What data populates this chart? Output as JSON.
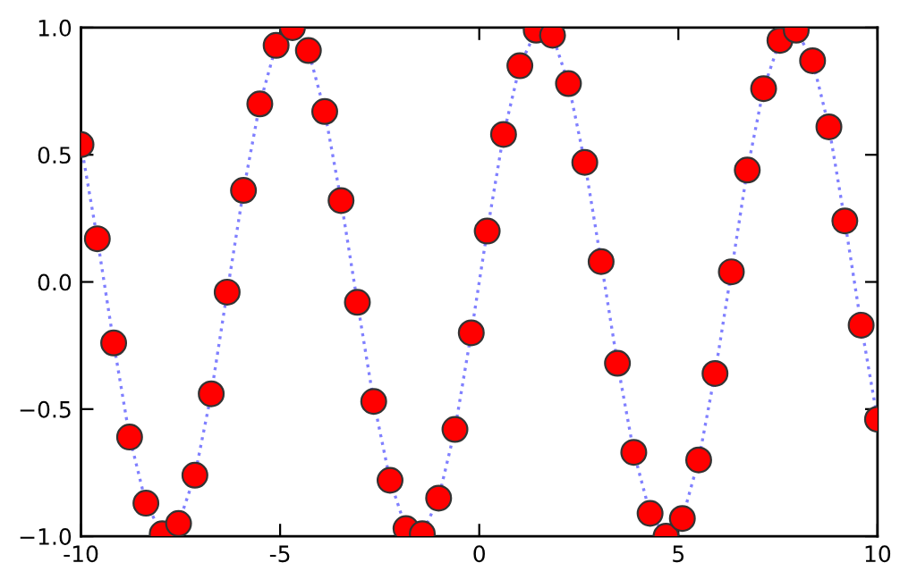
{
  "chart_data": {
    "type": "scatter",
    "x": [
      -10.0,
      -9.59,
      -9.18,
      -8.78,
      -8.37,
      -7.96,
      -7.55,
      -7.14,
      -6.73,
      -6.33,
      -5.92,
      -5.51,
      -5.1,
      -4.69,
      -4.29,
      -3.88,
      -3.47,
      -3.06,
      -2.65,
      -2.24,
      -1.84,
      -1.43,
      -1.02,
      -0.61,
      -0.2,
      0.2,
      0.61,
      1.02,
      1.43,
      1.84,
      2.24,
      2.65,
      3.06,
      3.47,
      3.88,
      4.29,
      4.69,
      5.1,
      5.51,
      5.92,
      6.33,
      6.73,
      7.14,
      7.55,
      7.96,
      8.37,
      8.78,
      9.18,
      9.59,
      10.0
    ],
    "series": [
      {
        "type": "line",
        "color": "#8080ff",
        "line_style": "dotted",
        "marker": "none",
        "values": [
          0.54,
          0.17,
          -0.24,
          -0.61,
          -0.87,
          -0.99,
          -0.95,
          -0.76,
          -0.44,
          -0.04,
          0.36,
          0.7,
          0.93,
          1.0,
          0.91,
          0.67,
          0.32,
          -0.08,
          -0.47,
          -0.78,
          -0.97,
          -0.99,
          -0.85,
          -0.58,
          -0.2,
          0.2,
          0.58,
          0.85,
          0.99,
          0.97,
          0.78,
          0.47,
          0.08,
          -0.32,
          -0.67,
          -0.91,
          -1.0,
          -0.93,
          -0.7,
          -0.36,
          0.04,
          0.44,
          0.76,
          0.95,
          0.99,
          0.87,
          0.61,
          0.24,
          -0.17,
          -0.54
        ]
      },
      {
        "color": "#ff0000",
        "marker": "circle",
        "values": [
          0.54,
          0.17,
          -0.24,
          -0.61,
          -0.87,
          -0.99,
          -0.95,
          -0.76,
          -0.44,
          -0.04,
          0.36,
          0.7,
          0.93,
          1.0,
          0.91,
          0.67,
          0.32,
          -0.08,
          -0.47,
          -0.78,
          -0.97,
          -0.99,
          -0.85,
          -0.58,
          -0.2,
          0.2,
          0.58,
          0.85,
          0.99,
          0.97,
          0.78,
          0.47,
          0.08,
          -0.32,
          -0.67,
          -0.91,
          -1.0,
          -0.93,
          -0.7,
          -0.36,
          0.04,
          0.44,
          0.76,
          0.95,
          0.99,
          0.87,
          0.61,
          0.24,
          -0.17,
          -0.54
        ]
      }
    ],
    "xlim": [
      -10,
      10
    ],
    "xticks": [
      -10,
      -5,
      0,
      5,
      10
    ],
    "ylim": [
      -1.0,
      1.0
    ],
    "yticks": [
      {
        "value": -1.0,
        "label": "−1.0"
      },
      {
        "value": -0.5,
        "label": "−0.5"
      },
      {
        "value": 0.0,
        "label": "0.0"
      },
      {
        "value": 0.5,
        "label": "0.5"
      },
      {
        "value": 1.0,
        "label": "1.0"
      }
    ],
    "grid": false,
    "legend": false
  }
}
